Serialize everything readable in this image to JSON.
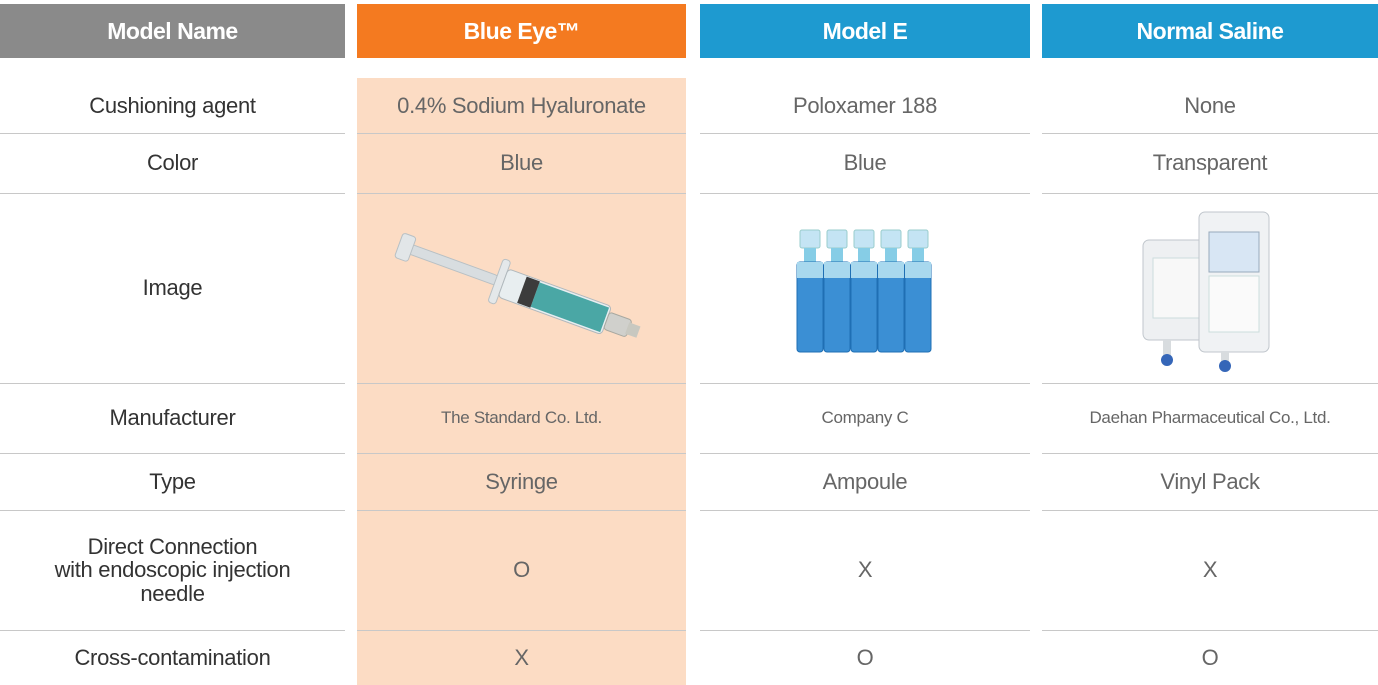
{
  "table": {
    "header": [
      "Model Name",
      "Blue Eye™",
      "Model E",
      "Normal Saline"
    ],
    "rows": [
      [
        "Cushioning agent",
        "0.4% Sodium Hyaluronate",
        "Poloxamer 188",
        "None"
      ],
      [
        "Color",
        "Blue",
        "Blue",
        "Transparent"
      ],
      [
        "Image"
      ],
      [
        "Manufacturer",
        "The Standard Co. Ltd.",
        "Company C",
        "Daehan Pharmaceutical Co., Ltd."
      ],
      [
        "Type",
        "Syringe",
        "Ampoule",
        "Vinyl Pack"
      ],
      [
        "Direct Connection\nwith endoscopic injection\nneedle",
        "O",
        "X",
        "X"
      ],
      [
        "Cross-contamination",
        "X",
        "O",
        "O"
      ]
    ]
  }
}
